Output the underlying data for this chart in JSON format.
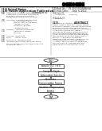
{
  "background_color": "#ffffff",
  "barcode_color": "#000000",
  "flowchart": {
    "box_color": "#ffffff",
    "box_edge": "#444444",
    "text_color": "#111111",
    "arrow_color": "#444444"
  },
  "fig_width": 1.28,
  "fig_height": 1.65,
  "dpi": 100
}
